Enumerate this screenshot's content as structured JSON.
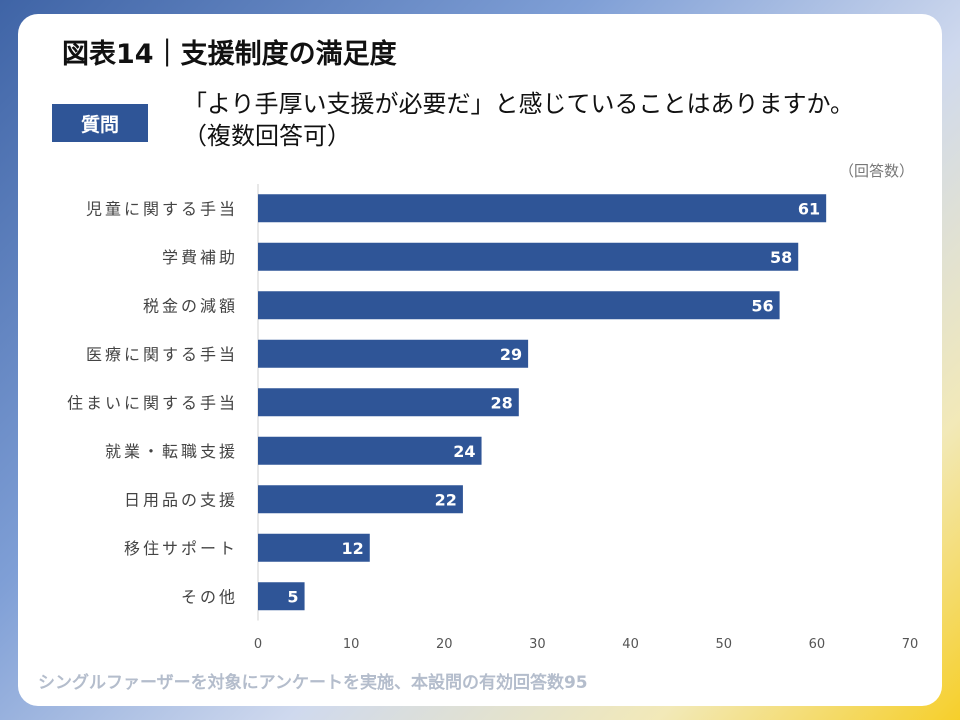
{
  "title": "図表14｜支援制度の満足度",
  "question_badge": "質問",
  "question_text": "「より手厚い支援が必要だ」と感じていることはありますか。（複数回答可）",
  "unit_label": "（回答数）",
  "footnote": "シングルファーザーを対象にアンケートを実施、本設問の有効回答数95",
  "colors": {
    "bar": "#2f5597",
    "badge": "#2f5597",
    "footnote": "#b4bdcc"
  },
  "chart_data": {
    "type": "bar",
    "orientation": "horizontal",
    "categories": [
      "児童に関する手当",
      "学費補助",
      "税金の減額",
      "医療に関する手当",
      "住まいに関する手当",
      "就業・転職支援",
      "日用品の支援",
      "移住サポート",
      "その他"
    ],
    "values": [
      61,
      58,
      56,
      29,
      28,
      24,
      22,
      12,
      5
    ],
    "xlim": [
      0,
      70
    ],
    "xticks": [
      0,
      10,
      20,
      30,
      40,
      50,
      60,
      70
    ],
    "grid": false,
    "xlabel": "",
    "ylabel": ""
  }
}
